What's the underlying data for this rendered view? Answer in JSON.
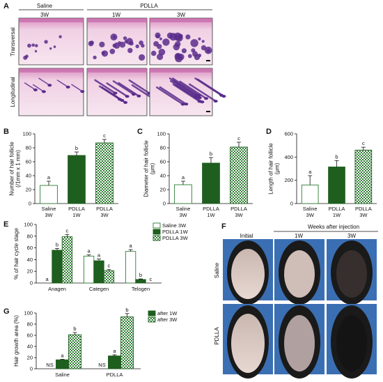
{
  "panels": {
    "A": {
      "letter": "A",
      "group_saline": "Saline",
      "group_pdlla": "PDLLA",
      "col_labels": [
        "3W",
        "1W",
        "3W"
      ],
      "row_labels": [
        "Transversal",
        "Longitudinal"
      ]
    },
    "B": {
      "letter": "B"
    },
    "C": {
      "letter": "C"
    },
    "D": {
      "letter": "D"
    },
    "E": {
      "letter": "E"
    },
    "F": {
      "letter": "F",
      "header": "Weeks after injection",
      "col_labels": [
        "Initial",
        "1W",
        "3W"
      ],
      "row_labels": [
        "Saline",
        "PDLLA"
      ]
    },
    "G": {
      "letter": "G"
    }
  },
  "colors": {
    "saline": "#ffffff",
    "pdlla_1w": "#1e5e1e",
    "pdlla_3w": "#2e7d32",
    "he_pink": "#e7b6d4",
    "he_purple": "#5a2d8c",
    "photo_bg": "#3b6fb3"
  },
  "chart_data": [
    {
      "id": "B",
      "type": "bar",
      "ylabel": "Number of hair follicle\n(/1mm x 1 mm)",
      "ylim": [
        0,
        100
      ],
      "yticks": [
        0,
        20,
        40,
        60,
        80,
        100
      ],
      "categories": [
        "Saline\n3W",
        "PDLLA\n1W",
        "PDLLA\n3W"
      ],
      "values": [
        26,
        69,
        87
      ],
      "errors": [
        6,
        5,
        5
      ],
      "letters": [
        "a",
        "b",
        "c"
      ],
      "styles": [
        "open",
        "solid",
        "checker"
      ]
    },
    {
      "id": "C",
      "type": "bar",
      "ylabel": "Diameter of hair follicle\n(μm)",
      "ylim": [
        0,
        100
      ],
      "yticks": [
        0,
        20,
        40,
        60,
        80,
        100
      ],
      "categories": [
        "Saline\n3W",
        "PDLLA\n1W",
        "PDLLA\n3W"
      ],
      "values": [
        27,
        58,
        81
      ],
      "errors": [
        5,
        8,
        7
      ],
      "letters": [
        "a",
        "b",
        "c"
      ],
      "styles": [
        "open",
        "solid",
        "checker"
      ]
    },
    {
      "id": "D",
      "type": "bar",
      "ylabel": "Length of hair follicle\n(μm)",
      "ylim": [
        0,
        600
      ],
      "yticks": [
        0,
        200,
        400,
        600
      ],
      "categories": [
        "Saline\n3W",
        "PDLLA\n1W",
        "PDLLA\n3W"
      ],
      "values": [
        160,
        315,
        460
      ],
      "errors": [
        80,
        55,
        25
      ],
      "letters": [
        "a",
        "b",
        "c"
      ],
      "styles": [
        "open",
        "solid",
        "checker"
      ]
    },
    {
      "id": "E",
      "type": "bar",
      "ylabel": "% of hair cycle stage",
      "ylim": [
        0,
        100
      ],
      "yticks": [
        0,
        20,
        40,
        60,
        80,
        100
      ],
      "categories": [
        "Anagen",
        "Categen",
        "Telogen"
      ],
      "series": [
        {
          "name": "Saline 3W",
          "values": [
            0,
            46,
            54
          ],
          "errors": [
            0,
            2,
            3
          ],
          "letters": [
            "a",
            "a",
            "a"
          ],
          "style": "open"
        },
        {
          "name": "PDLLA 1W",
          "values": [
            56,
            38,
            6
          ],
          "errors": [
            3,
            3,
            1
          ],
          "letters": [
            "b",
            "a",
            "b"
          ],
          "style": "solid"
        },
        {
          "name": "PDLLA 3W",
          "values": [
            79,
            21,
            0
          ],
          "errors": [
            4,
            2,
            0
          ],
          "letters": [
            "c",
            "c",
            "c"
          ],
          "style": "checker"
        }
      ],
      "legend_position": "top-right"
    },
    {
      "id": "G",
      "type": "bar",
      "ylabel": "Hair growth area (%)",
      "ylim": [
        0,
        100
      ],
      "yticks": [
        0,
        20,
        40,
        60,
        80,
        100
      ],
      "categories": [
        "Saline",
        "PDLLA"
      ],
      "series": [
        {
          "name": "",
          "values": [
            0,
            0
          ],
          "errors": [
            0,
            0
          ],
          "letters": [
            "NS",
            "NS"
          ],
          "style": "none"
        },
        {
          "name": "after 1W",
          "values": [
            16,
            23
          ],
          "errors": [
            1,
            2
          ],
          "letters": [
            "a",
            "a"
          ],
          "style": "solid"
        },
        {
          "name": "after 3W",
          "values": [
            61,
            93
          ],
          "errors": [
            4,
            6
          ],
          "letters": [
            "b",
            "b"
          ],
          "style": "checker"
        }
      ],
      "legend_position": "top-right"
    }
  ]
}
